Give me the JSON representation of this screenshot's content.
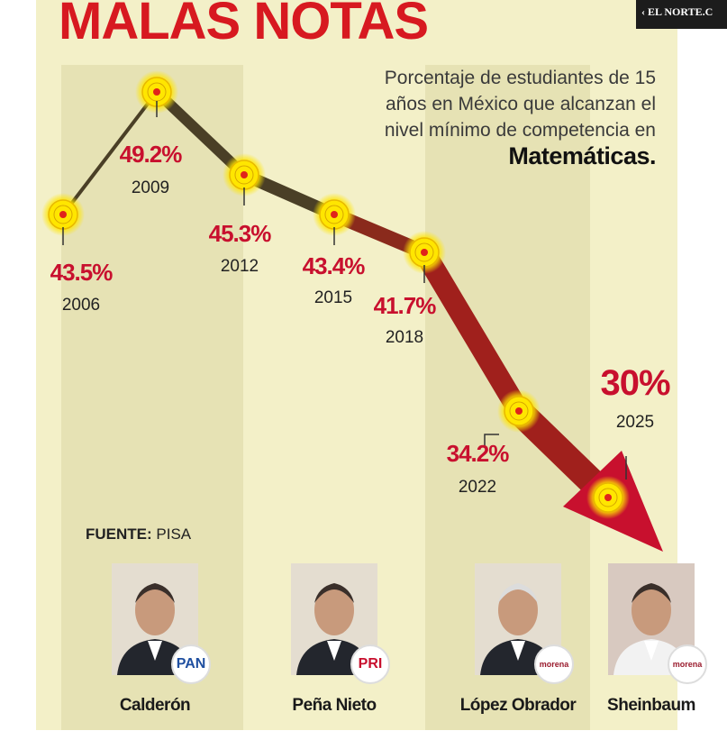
{
  "header": {
    "title": "MALAS NOTAS",
    "brand": "‹ EL NORTE.C",
    "subtitle": "Porcentaje de estudiantes de 15 años en México que alcanzan el nivel mínimo de competencia en",
    "subtitle_bold": "Matemáticas."
  },
  "chart_data": {
    "type": "line",
    "x": [
      2006,
      2009,
      2012,
      2015,
      2018,
      2022,
      2025
    ],
    "values": [
      43.5,
      49.2,
      45.3,
      43.4,
      41.7,
      34.2,
      30
    ],
    "labels": [
      "43.5%",
      "49.2%",
      "45.3%",
      "43.4%",
      "41.7%",
      "34.2%",
      "30%"
    ],
    "year_labels": [
      "2006",
      "2009",
      "2012",
      "2015",
      "2018",
      "2022",
      "2025"
    ],
    "colors": {
      "line_early": "#4a3f26",
      "line_late": "#a0201c",
      "marker": "#ffe600",
      "marker_center": "#e0241b",
      "value": "#c8102e"
    }
  },
  "source": {
    "label": "FUENTE:",
    "value": "PISA"
  },
  "presidents": [
    {
      "name": "Calderón",
      "party": "PAN",
      "party_color": "#1f4fa0"
    },
    {
      "name": "Peña Nieto",
      "party": "PRI",
      "party_color": "#c8102e"
    },
    {
      "name": "López Obrador",
      "party": "morena",
      "party_color": "#9a1b2d"
    },
    {
      "name": "Sheinbaum",
      "party": "morena",
      "party_color": "#9a1b2d"
    }
  ]
}
